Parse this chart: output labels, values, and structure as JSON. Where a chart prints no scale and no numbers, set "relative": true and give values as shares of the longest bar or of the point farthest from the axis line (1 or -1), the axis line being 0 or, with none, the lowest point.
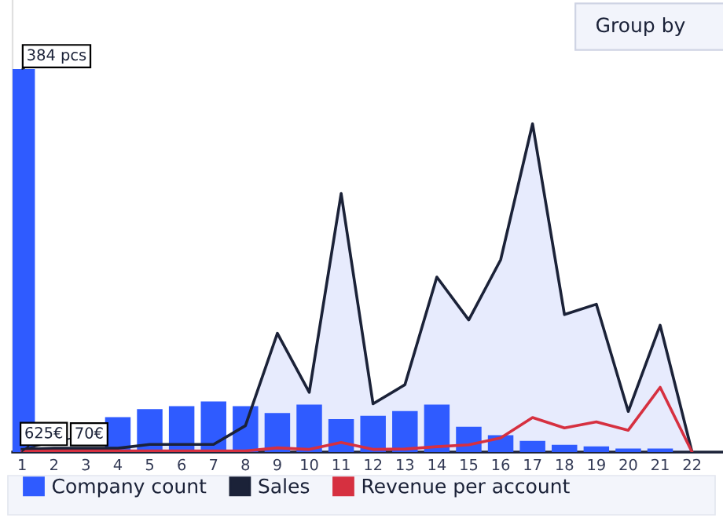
{
  "chart_data": {
    "type": "bar",
    "relative": true,
    "categories": [
      "1",
      "2",
      "3",
      "4",
      "5",
      "6",
      "7",
      "8",
      "9",
      "10",
      "11",
      "12",
      "13",
      "14",
      "15",
      "16",
      "17",
      "18",
      "19",
      "20",
      "21",
      "22"
    ],
    "series": [
      {
        "name": "Company count",
        "color": "#2f5bff",
        "values": [
          1,
          null,
          null,
          0.091,
          0.112,
          0.12,
          0.132,
          0.12,
          0.102,
          0.124,
          0.086,
          0.095,
          0.107,
          0.124,
          0.066,
          0.044,
          0.029,
          0.019,
          0.015,
          0.009,
          0.009,
          0
        ]
      },
      {
        "name": "Sales",
        "type": "area",
        "color": "#1b2238",
        "values": [
          0.007,
          0.01,
          0.01,
          0.01,
          0.02,
          0.02,
          0.02,
          0.069,
          0.31,
          0.156,
          0.675,
          0.126,
          0.176,
          0.457,
          0.345,
          0.502,
          0.857,
          0.359,
          0.386,
          0.106,
          0.331,
          0
        ]
      },
      {
        "name": "Revenue per account",
        "type": "line",
        "color": "#d63040",
        "values": [
          0.002,
          0.003,
          0.003,
          0.003,
          0.003,
          0.003,
          0.003,
          0.003,
          0.011,
          0.007,
          0.025,
          0.007,
          0.008,
          0.014,
          0.019,
          0.037,
          0.09,
          0.063,
          0.079,
          0.057,
          0.169,
          0
        ]
      }
    ],
    "annotations": [
      {
        "text": "384 pcs",
        "x": "1",
        "y": 1
      },
      {
        "text": "70€",
        "x": "1",
        "y": 0.007
      },
      {
        "text": "625€",
        "x": "1",
        "y": 0.002
      },
      "Group by"
    ],
    "legend": "bottom",
    "grid": false
  }
}
